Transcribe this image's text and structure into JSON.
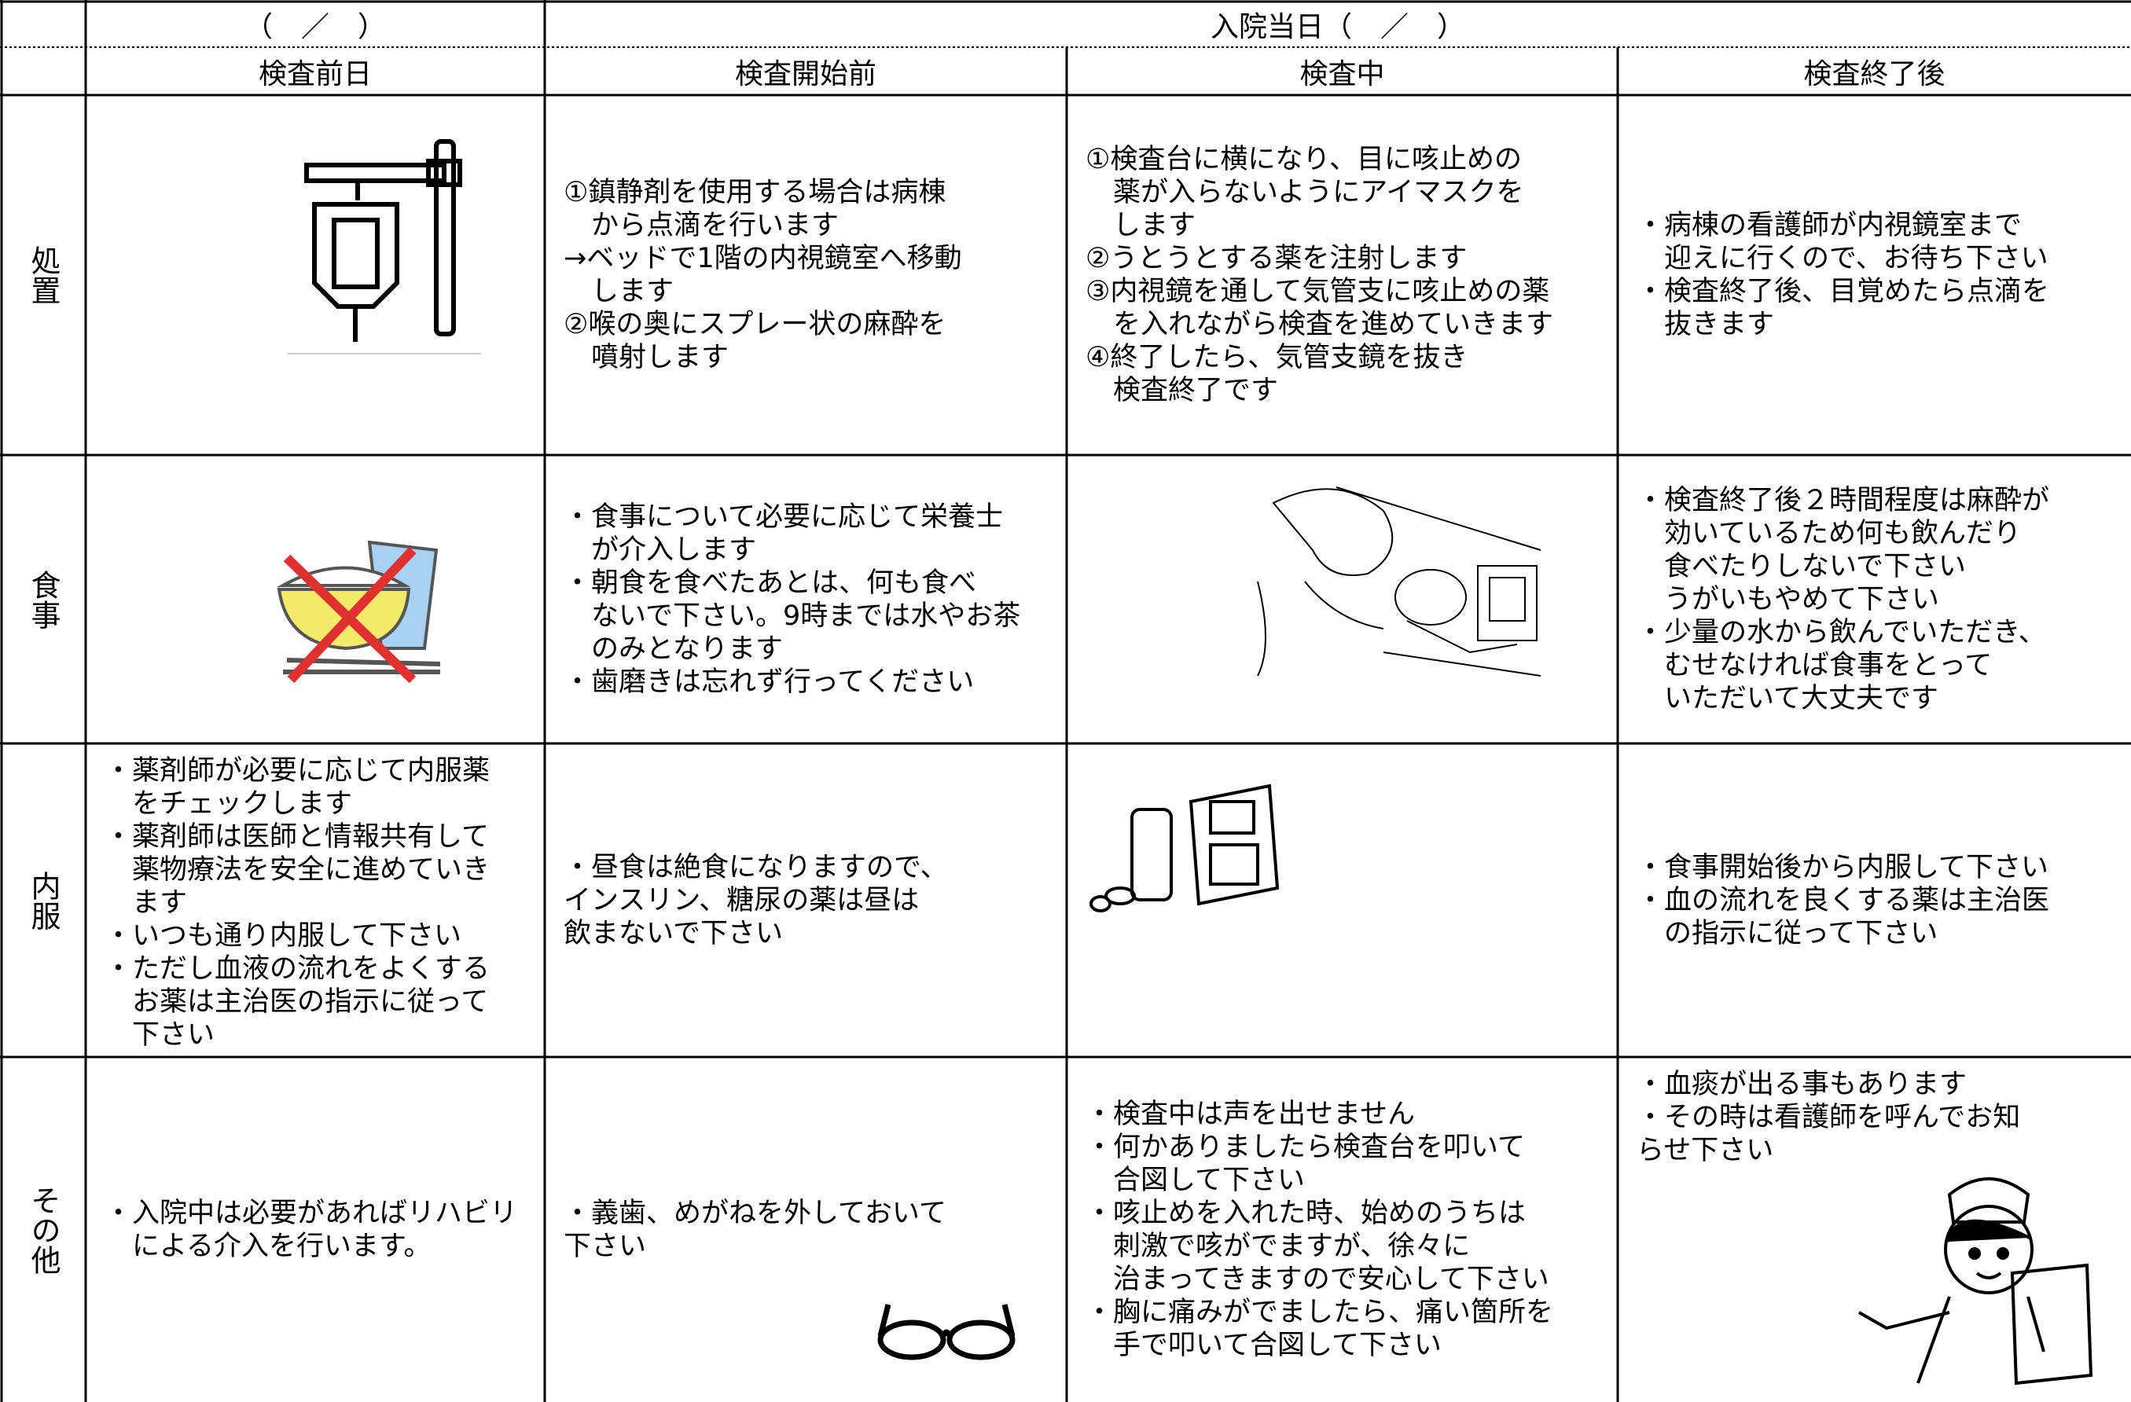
{
  "header": {
    "left": "（　／　）",
    "right": "入院当日（　／　）",
    "columns": [
      "検査前日",
      "検査開始前",
      "検査中",
      "検査終了後"
    ]
  },
  "rows": [
    {
      "label": "処置",
      "cells": [
        [],
        [
          "①鎮静剤を使用する場合は病棟",
          "　から点滴を行います",
          "→ベッドで1階の内視鏡室へ移動",
          "　します",
          "②喉の奥にスプレー状の麻酔を",
          "　噴射します"
        ],
        [
          "①検査台に横になり、目に咳止めの",
          "　薬が入らないようにアイマスクを",
          "　します",
          "②うとうとする薬を注射します",
          "③内視鏡を通して気管支に咳止めの薬",
          "　を入れながら検査を進めていきます",
          "④終了したら、気管支鏡を抜き",
          "　検査終了です"
        ],
        [
          "・病棟の看護師が内視鏡室まで",
          "　迎えに行くので、お待ち下さい",
          "・検査終了後、目覚めたら点滴を",
          "　抜きます"
        ]
      ]
    },
    {
      "label": "食事",
      "cells": [
        [],
        [
          "・食事について必要に応じて栄養士",
          "　が介入します",
          "・朝食を食べたあとは、何も食べ",
          "　ないで下さい。9時までは水やお茶",
          "　のみとなります",
          "・歯磨きは忘れず行ってください"
        ],
        [],
        [
          "・検査終了後２時間程度は麻酔が",
          "　効いているため何も飲んだり",
          "　食べたりしないで下さい",
          "　うがいもやめて下さい",
          "・少量の水から飲んでいただき、",
          "　むせなければ食事をとって",
          "　いただいて大丈夫です"
        ]
      ]
    },
    {
      "label": "内服",
      "cells": [
        [
          "・薬剤師が必要に応じて内服薬",
          "　をチェックします",
          "・薬剤師は医師と情報共有して",
          "　薬物療法を安全に進めていき",
          "　ます",
          "・いつも通り内服して下さい",
          "・ただし血液の流れをよくする",
          "　お薬は主治医の指示に従って",
          "　下さい"
        ],
        [
          "・昼食は絶食になりますので、",
          "インスリン、糖尿の薬は昼は",
          "飲まないで下さい"
        ],
        [],
        [
          "・食事開始後から内服して下さい",
          "・血の流れを良くする薬は主治医",
          "　の指示に従って下さい"
        ]
      ]
    },
    {
      "label": "その他",
      "cells": [
        [
          "・入院中は必要があればリハビリ",
          "　による介入を行います。"
        ],
        [
          "・義歯、めがねを外しておいて",
          "下さい"
        ],
        [
          "・検査中は声を出せません",
          "・何かありましたら検査台を叩いて",
          "　合図して下さい",
          "・咳止めを入れた時、始めのうちは",
          "　刺激で咳がでますが、徐々に",
          "　治まってきますので安心して下さい",
          "・胸に痛みがでましたら、痛い箇所を",
          "　手で叩いて合図して下さい"
        ],
        [
          "・血痰が出る事もあります",
          "・その時は看護師を呼んでお知",
          "らせ下さい"
        ]
      ]
    }
  ]
}
